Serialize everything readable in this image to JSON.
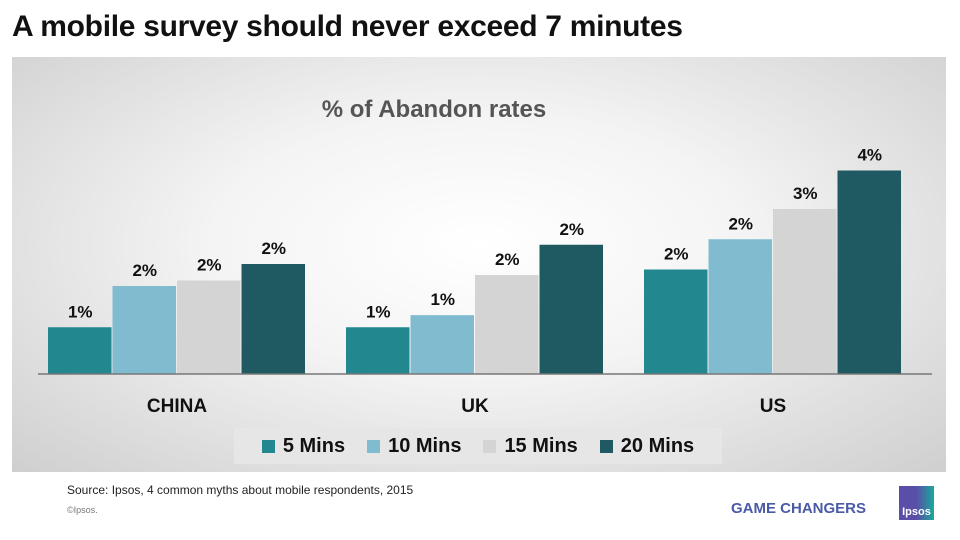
{
  "title": "A mobile survey should never exceed 7 minutes",
  "chart_data": {
    "type": "bar",
    "title": "% of Abandon rates",
    "categories": [
      "CHINA",
      "UK",
      "US"
    ],
    "series": [
      {
        "name": "5 Mins",
        "color": "#22878f",
        "values": [
          0.85,
          0.85,
          1.9
        ],
        "labels": [
          "1%",
          "1%",
          "2%"
        ]
      },
      {
        "name": "10 Mins",
        "color": "#80bbd0",
        "values": [
          1.6,
          1.07,
          2.45
        ],
        "labels": [
          "2%",
          "1%",
          "2%"
        ]
      },
      {
        "name": "15 Mins",
        "color": "#d4d4d4",
        "values": [
          1.7,
          1.8,
          3.0
        ],
        "labels": [
          "2%",
          "2%",
          "3%"
        ]
      },
      {
        "name": "20 Mins",
        "color": "#1f5a62",
        "values": [
          2.0,
          2.35,
          3.7
        ],
        "labels": [
          "2%",
          "2%",
          "4%"
        ]
      }
    ],
    "unit": "%",
    "ylim": [
      0,
      4.2
    ],
    "grid": false,
    "legend": "bottom"
  },
  "footer": {
    "source": "Source: Ipsos, 4 common myths about mobile respondents, 2015",
    "copyright": "©Ipsos.",
    "tagline": "GAME CHANGERS",
    "logo_text": "Ipsos"
  }
}
